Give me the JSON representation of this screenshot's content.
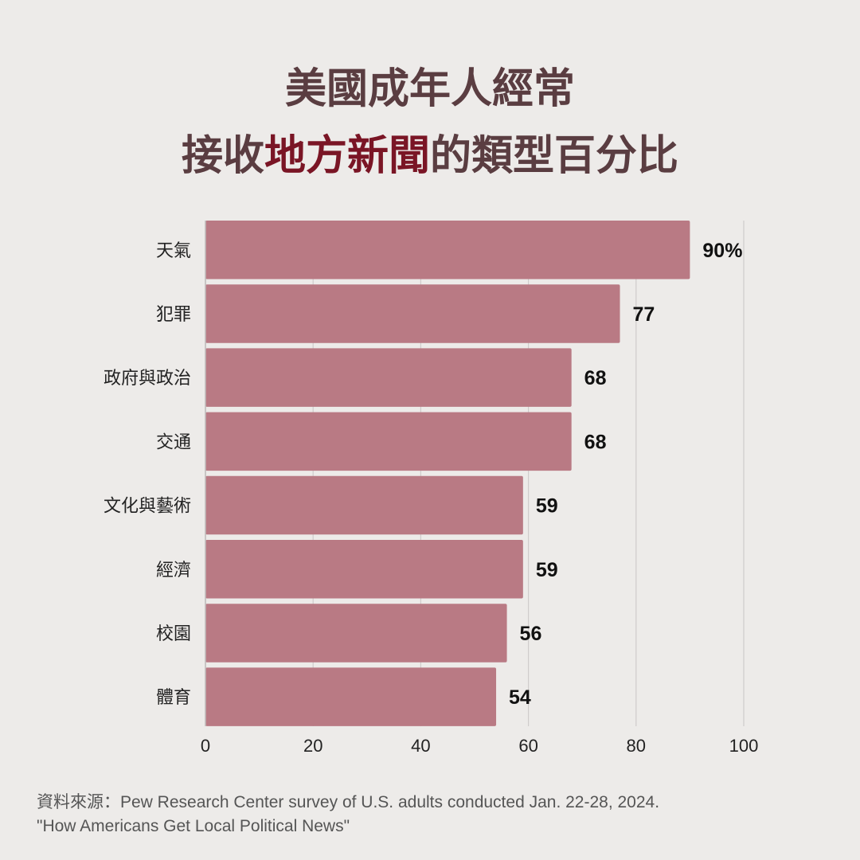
{
  "title": {
    "line1": "美國成年人經常",
    "line2_prefix": "接收",
    "line2_highlight": "地方新聞",
    "line2_suffix": "的類型百分比"
  },
  "chart_data": {
    "type": "bar",
    "orientation": "horizontal",
    "categories": [
      "天氣",
      "犯罪",
      "政府與政治",
      "交通",
      "文化與藝術",
      "經濟",
      "校園",
      "體育"
    ],
    "values": [
      90,
      77,
      68,
      68,
      59,
      59,
      56,
      54
    ],
    "value_labels": [
      "90%",
      "77",
      "68",
      "68",
      "59",
      "59",
      "56",
      "54"
    ],
    "x_ticks": [
      0,
      20,
      40,
      60,
      80,
      100
    ],
    "xlim": [
      0,
      100
    ],
    "grid": "vertical",
    "bar_color": "#b97a84"
  },
  "source": {
    "line1": "資料來源：Pew Research Center survey of U.S. adults conducted Jan. 22-28, 2024.",
    "line2": "\"How Americans Get Local Political News\""
  }
}
